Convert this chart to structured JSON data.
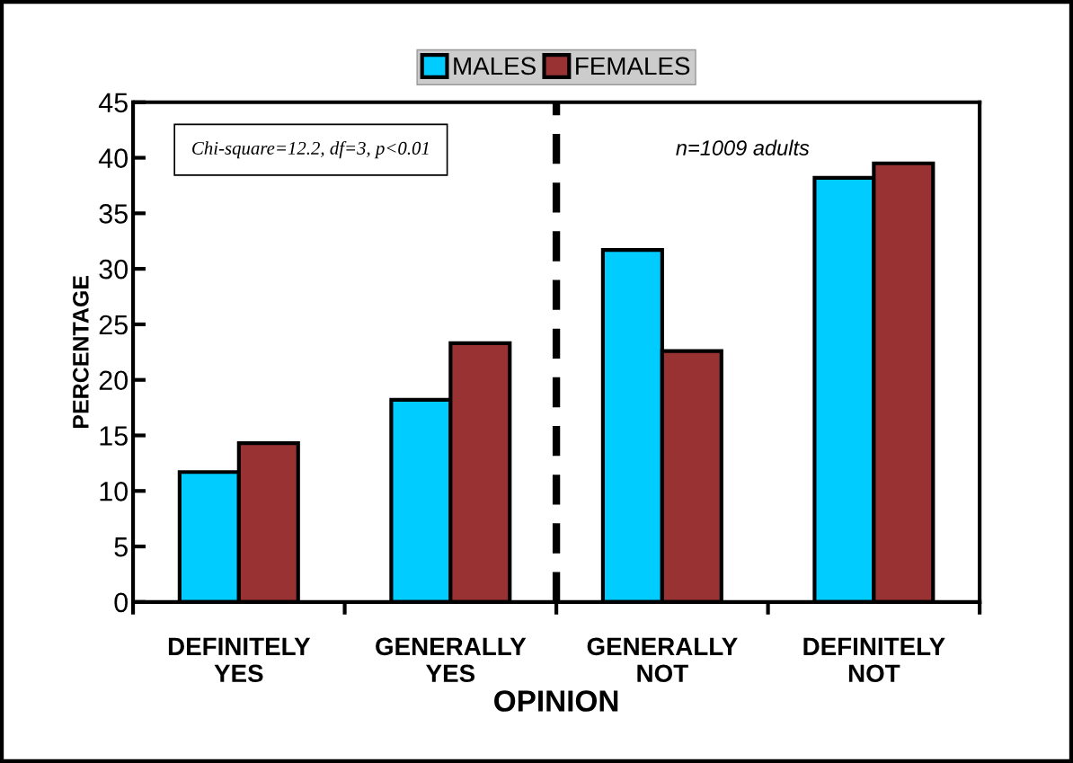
{
  "chart_data": {
    "type": "bar",
    "xlabel": "OPINION",
    "ylabel": "PERCENTAGE",
    "categories": [
      "DEFINITELY\nYES",
      "GENERALLY\nYES",
      "GENERALLY\nNOT",
      "DEFINITELY\nNOT"
    ],
    "series": [
      {
        "name": "MALES",
        "color": "#00ccff",
        "values": [
          11.7,
          18.2,
          31.7,
          38.2
        ]
      },
      {
        "name": "FEMALES",
        "color": "#993333",
        "values": [
          14.3,
          23.3,
          22.6,
          39.5
        ]
      }
    ],
    "ylim": [
      0,
      45
    ],
    "yticks": [
      0,
      5,
      10,
      15,
      20,
      25,
      30,
      35,
      40,
      45
    ],
    "annotations": [
      "Chi-square=12.2, df=3, p<0.01",
      "n=1009 adults"
    ],
    "legend": "top",
    "grid": false
  }
}
